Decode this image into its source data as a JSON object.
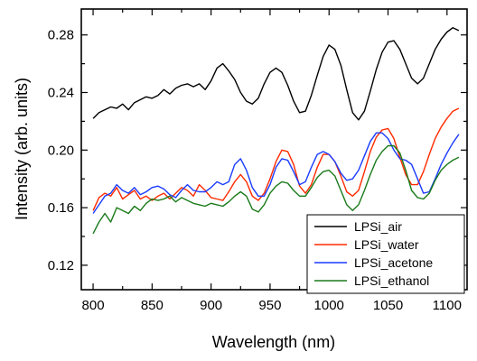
{
  "chart_data": {
    "type": "line",
    "xlabel": "Wavelength (nm)",
    "ylabel": "Intensity (arb. units)",
    "xlim": [
      790,
      1117
    ],
    "ylim": [
      0.103,
      0.298
    ],
    "x_ticks": [
      800,
      850,
      900,
      950,
      1000,
      1050,
      1100
    ],
    "x_tick_labels": [
      "800",
      "850",
      "900",
      "950",
      "1000",
      "1050",
      "1100"
    ],
    "y_ticks": [
      0.12,
      0.16,
      0.2,
      0.24,
      0.28
    ],
    "y_tick_labels": [
      "0.12",
      "0.16",
      "0.20",
      "0.24",
      "0.28"
    ],
    "grid": false,
    "legend_position": "bottom-right",
    "series": [
      {
        "name": "LPSi_air",
        "color": "#000000",
        "x": [
          800,
          805,
          810,
          815,
          820,
          825,
          830,
          835,
          840,
          845,
          850,
          855,
          860,
          865,
          870,
          875,
          880,
          885,
          890,
          895,
          900,
          905,
          910,
          915,
          920,
          925,
          930,
          935,
          940,
          945,
          950,
          955,
          960,
          965,
          970,
          975,
          980,
          985,
          990,
          995,
          1000,
          1005,
          1010,
          1015,
          1020,
          1025,
          1030,
          1035,
          1040,
          1045,
          1050,
          1055,
          1060,
          1065,
          1070,
          1075,
          1080,
          1085,
          1090,
          1095,
          1100,
          1105,
          1110
        ],
        "y": [
          0.222,
          0.226,
          0.228,
          0.23,
          0.229,
          0.232,
          0.228,
          0.233,
          0.235,
          0.237,
          0.236,
          0.238,
          0.242,
          0.239,
          0.243,
          0.245,
          0.246,
          0.244,
          0.246,
          0.242,
          0.248,
          0.257,
          0.26,
          0.255,
          0.249,
          0.24,
          0.234,
          0.232,
          0.236,
          0.246,
          0.254,
          0.257,
          0.254,
          0.245,
          0.234,
          0.226,
          0.227,
          0.238,
          0.252,
          0.265,
          0.273,
          0.27,
          0.259,
          0.242,
          0.226,
          0.221,
          0.227,
          0.241,
          0.256,
          0.268,
          0.275,
          0.276,
          0.27,
          0.26,
          0.25,
          0.246,
          0.25,
          0.26,
          0.27,
          0.277,
          0.282,
          0.285,
          0.283
        ]
      },
      {
        "name": "LPSi_water",
        "color": "#ff2a00",
        "x": [
          800,
          805,
          810,
          815,
          820,
          825,
          830,
          835,
          840,
          845,
          850,
          855,
          860,
          865,
          870,
          875,
          880,
          885,
          890,
          895,
          900,
          905,
          910,
          915,
          920,
          925,
          930,
          935,
          940,
          945,
          950,
          955,
          960,
          965,
          970,
          975,
          980,
          985,
          990,
          995,
          1000,
          1005,
          1010,
          1015,
          1020,
          1025,
          1030,
          1035,
          1040,
          1045,
          1050,
          1055,
          1060,
          1065,
          1070,
          1075,
          1080,
          1085,
          1090,
          1095,
          1100,
          1105,
          1110
        ],
        "y": [
          0.158,
          0.167,
          0.17,
          0.168,
          0.174,
          0.166,
          0.169,
          0.172,
          0.166,
          0.168,
          0.165,
          0.168,
          0.17,
          0.166,
          0.17,
          0.174,
          0.172,
          0.168,
          0.176,
          0.172,
          0.167,
          0.166,
          0.165,
          0.171,
          0.178,
          0.183,
          0.178,
          0.168,
          0.165,
          0.17,
          0.18,
          0.192,
          0.2,
          0.199,
          0.19,
          0.175,
          0.17,
          0.176,
          0.188,
          0.197,
          0.197,
          0.192,
          0.182,
          0.171,
          0.168,
          0.172,
          0.185,
          0.199,
          0.209,
          0.214,
          0.215,
          0.208,
          0.195,
          0.183,
          0.176,
          0.176,
          0.185,
          0.197,
          0.208,
          0.216,
          0.222,
          0.227,
          0.229
        ]
      },
      {
        "name": "LPSi_acetone",
        "color": "#1a3cff",
        "x": [
          800,
          805,
          810,
          815,
          820,
          825,
          830,
          835,
          840,
          845,
          850,
          855,
          860,
          865,
          870,
          875,
          880,
          885,
          890,
          895,
          900,
          905,
          910,
          915,
          920,
          925,
          930,
          935,
          940,
          945,
          950,
          955,
          960,
          965,
          970,
          975,
          980,
          985,
          990,
          995,
          1000,
          1005,
          1010,
          1015,
          1020,
          1025,
          1030,
          1035,
          1040,
          1045,
          1050,
          1055,
          1060,
          1065,
          1070,
          1075,
          1080,
          1085,
          1090,
          1095,
          1100,
          1105,
          1110
        ],
        "y": [
          0.156,
          0.162,
          0.168,
          0.17,
          0.176,
          0.172,
          0.17,
          0.174,
          0.169,
          0.171,
          0.174,
          0.175,
          0.173,
          0.169,
          0.167,
          0.172,
          0.176,
          0.172,
          0.171,
          0.171,
          0.174,
          0.178,
          0.176,
          0.178,
          0.19,
          0.194,
          0.186,
          0.174,
          0.168,
          0.168,
          0.176,
          0.188,
          0.194,
          0.193,
          0.185,
          0.176,
          0.178,
          0.188,
          0.197,
          0.199,
          0.197,
          0.192,
          0.184,
          0.179,
          0.18,
          0.186,
          0.196,
          0.206,
          0.212,
          0.212,
          0.208,
          0.2,
          0.194,
          0.193,
          0.19,
          0.18,
          0.17,
          0.171,
          0.18,
          0.19,
          0.198,
          0.205,
          0.211
        ]
      },
      {
        "name": "LPSi_ethanol",
        "color": "#1a7a1a",
        "x": [
          800,
          805,
          810,
          815,
          820,
          825,
          830,
          835,
          840,
          845,
          850,
          855,
          860,
          865,
          870,
          875,
          880,
          885,
          890,
          895,
          900,
          905,
          910,
          915,
          920,
          925,
          930,
          935,
          940,
          945,
          950,
          955,
          960,
          965,
          970,
          975,
          980,
          985,
          990,
          995,
          1000,
          1005,
          1010,
          1015,
          1020,
          1025,
          1030,
          1035,
          1040,
          1045,
          1050,
          1055,
          1060,
          1065,
          1070,
          1075,
          1080,
          1085,
          1090,
          1095,
          1100,
          1105,
          1110
        ],
        "y": [
          0.142,
          0.15,
          0.156,
          0.15,
          0.16,
          0.158,
          0.156,
          0.161,
          0.158,
          0.163,
          0.166,
          0.165,
          0.166,
          0.168,
          0.164,
          0.167,
          0.165,
          0.163,
          0.162,
          0.161,
          0.163,
          0.162,
          0.161,
          0.164,
          0.168,
          0.171,
          0.168,
          0.159,
          0.157,
          0.162,
          0.17,
          0.175,
          0.178,
          0.177,
          0.172,
          0.168,
          0.168,
          0.174,
          0.181,
          0.185,
          0.186,
          0.182,
          0.172,
          0.162,
          0.158,
          0.162,
          0.172,
          0.183,
          0.193,
          0.199,
          0.203,
          0.203,
          0.198,
          0.186,
          0.172,
          0.167,
          0.166,
          0.17,
          0.179,
          0.186,
          0.19,
          0.193,
          0.195
        ]
      }
    ]
  }
}
